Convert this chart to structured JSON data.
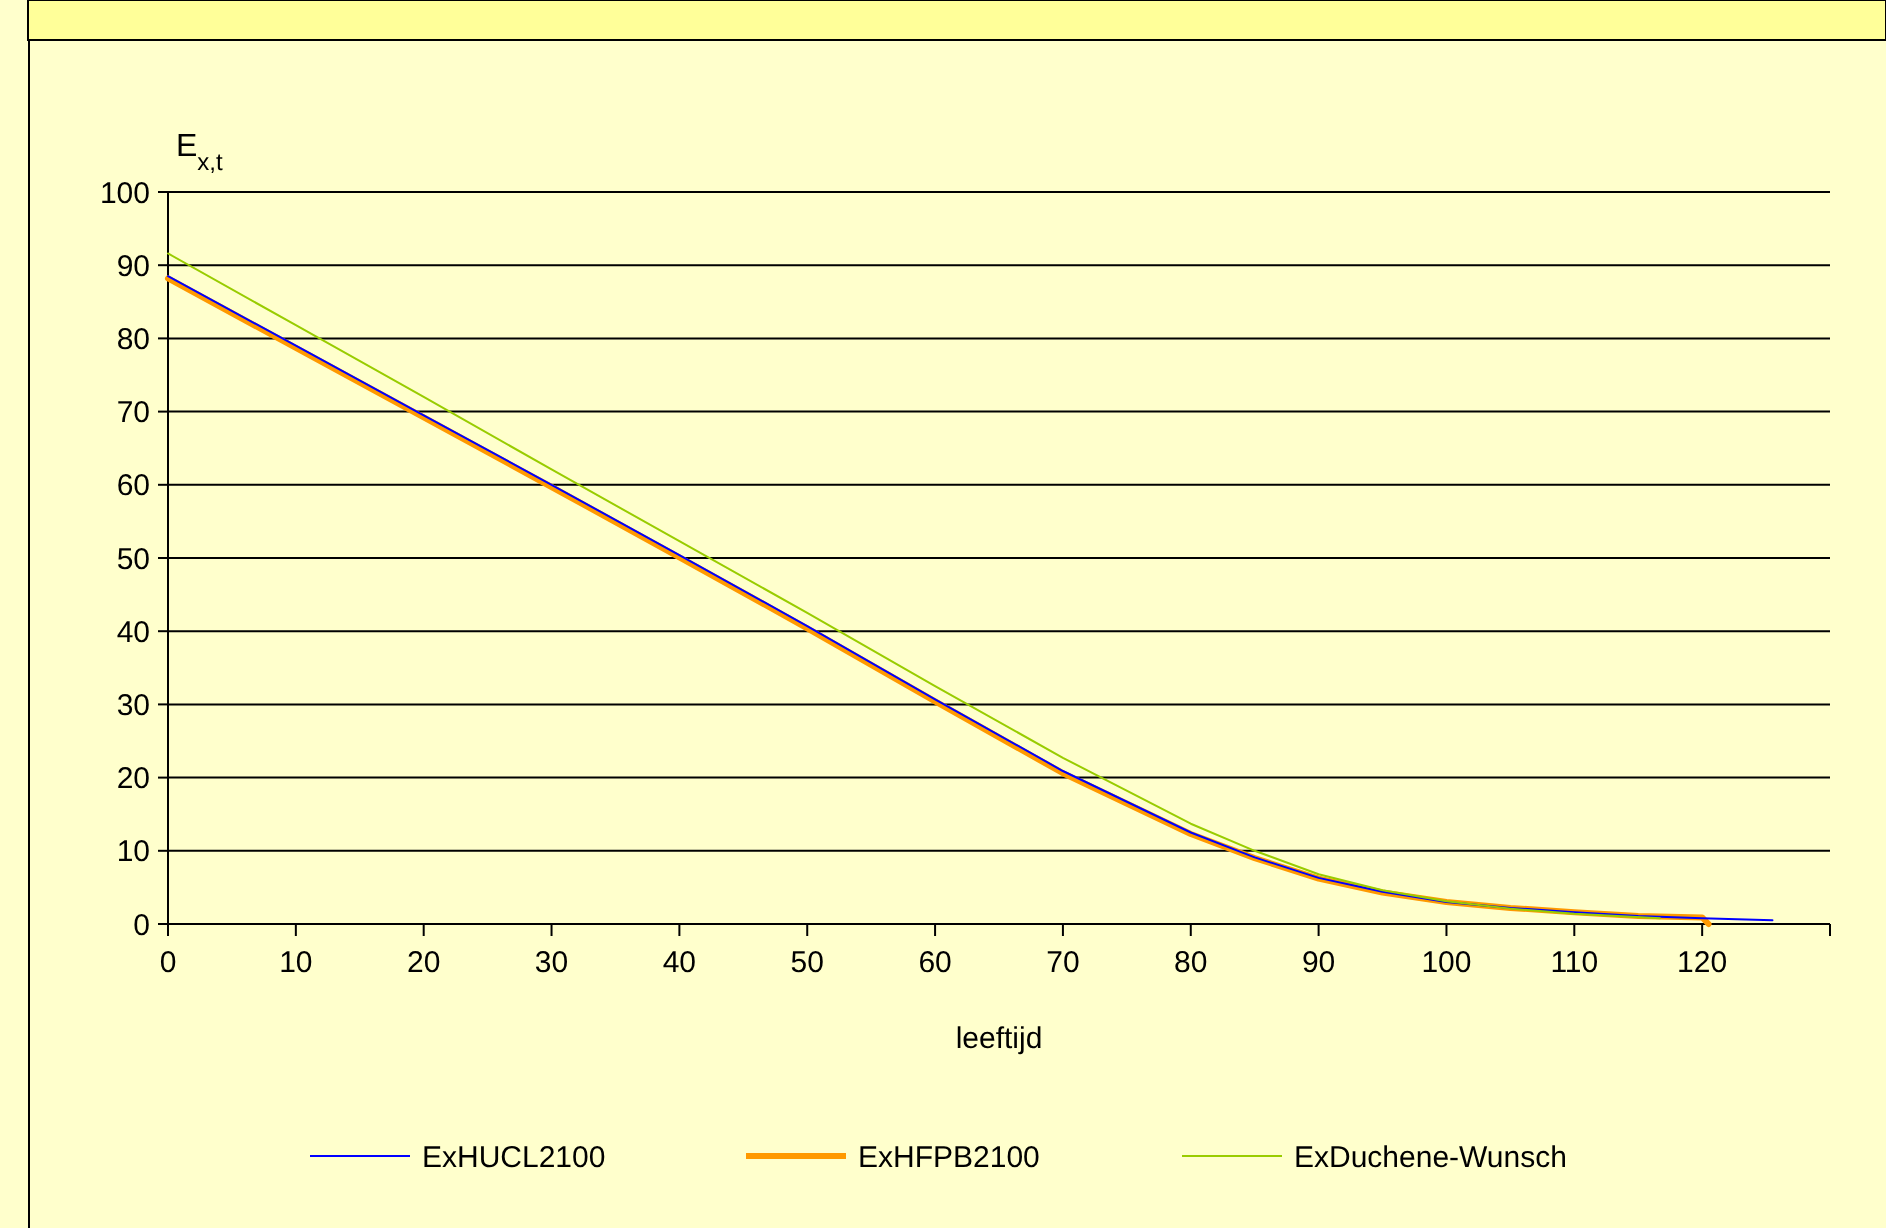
{
  "chart_data": {
    "type": "line",
    "xlabel": "leeftijd",
    "ylabel": "E$_{x,t}$",
    "xlim": [
      0,
      130
    ],
    "xticks": [
      0,
      10,
      20,
      30,
      40,
      50,
      60,
      70,
      80,
      90,
      100,
      110,
      120,
      {
        "value": 130,
        "label": null
      }
    ],
    "ylim": [
      0,
      100
    ],
    "yticks": [
      0,
      10,
      20,
      30,
      40,
      50,
      60,
      70,
      80,
      90,
      100
    ],
    "grid": "y",
    "legend": "bottom",
    "marker": "none",
    "line_style": "solid",
    "series": [
      {
        "name": "ExHUCL2100",
        "color": "#0000ff",
        "x": [
          0,
          10,
          20,
          30,
          40,
          50,
          60,
          70,
          80,
          85,
          90,
          95,
          100,
          105,
          110,
          115,
          120,
          125.5
        ],
        "values": [
          88.5,
          79,
          69.5,
          60,
          50.4,
          40.7,
          30.7,
          20.9,
          12.5,
          9.1,
          6.3,
          4.4,
          3.0,
          2.2,
          1.6,
          1.1,
          0.8,
          0.5
        ]
      },
      {
        "name": "ExHFPB2100",
        "color": "#ff9900",
        "x": [
          0,
          10,
          20,
          30,
          40,
          50,
          60,
          70,
          80,
          85,
          90,
          95,
          100,
          105,
          110,
          115,
          120,
          120.5
        ],
        "values": [
          88.2,
          78.7,
          69.2,
          59.7,
          50.1,
          40.4,
          30.4,
          20.6,
          12.3,
          9.0,
          6.2,
          4.3,
          3.0,
          2.2,
          1.6,
          1.1,
          0.9,
          0
        ]
      },
      {
        "name": "ExDuchene-Wunsch",
        "color": "#99cc00",
        "x": [
          0,
          10,
          20,
          30,
          40,
          50,
          60,
          70,
          80,
          85,
          90,
          95,
          100,
          105,
          110,
          116.7
        ],
        "values": [
          91.6,
          81.8,
          72,
          62.1,
          52.3,
          42.5,
          32.5,
          22.7,
          13.7,
          10,
          6.8,
          4.6,
          3.1,
          2.1,
          1.4,
          0.8
        ]
      }
    ]
  }
}
